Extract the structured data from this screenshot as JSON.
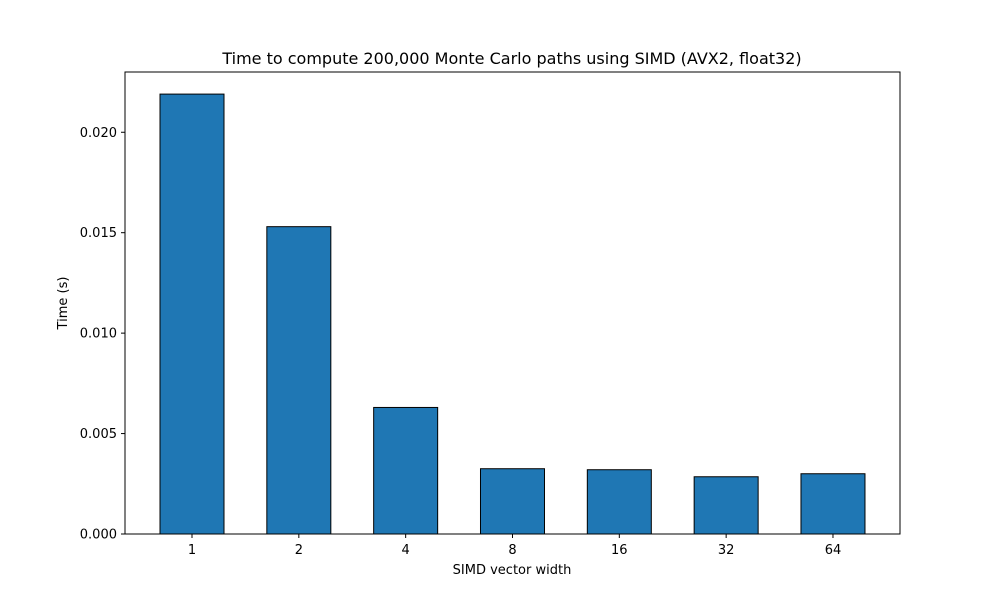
{
  "chart_data": {
    "type": "bar",
    "title": "Time to compute 200,000 Monte Carlo paths using SIMD (AVX2, float32)",
    "xlabel": "SIMD vector width",
    "ylabel": "Time (s)",
    "categories": [
      "1",
      "2",
      "4",
      "8",
      "16",
      "32",
      "64"
    ],
    "values": [
      0.0219,
      0.0153,
      0.0063,
      0.00325,
      0.0032,
      0.00285,
      0.003
    ],
    "ylim": [
      0,
      0.023
    ],
    "yticks": [
      0.0,
      0.005,
      0.01,
      0.015,
      0.02
    ],
    "ytick_labels": [
      "0.000",
      "0.005",
      "0.010",
      "0.015",
      "0.020"
    ],
    "grid": false,
    "legend": "none",
    "colors": {
      "bar": "#1f77b4",
      "edge": "#000000"
    }
  }
}
